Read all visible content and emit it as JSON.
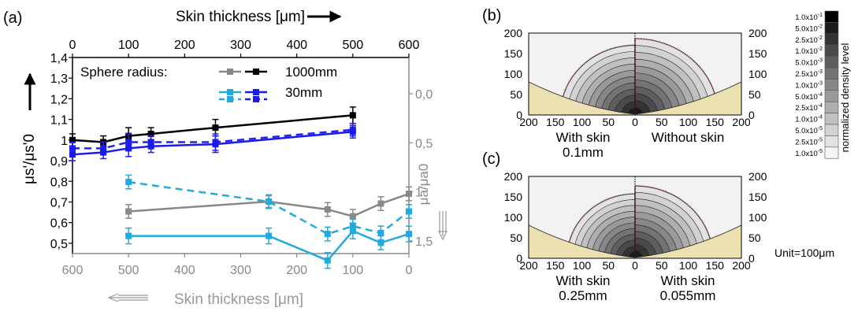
{
  "chart_data": [
    {
      "panel_label": "(a)",
      "type": "line",
      "top_axis": {
        "label": "Skin thickness [μm]",
        "ticks": [
          0,
          100,
          200,
          300,
          400,
          500,
          600
        ],
        "range": [
          0,
          600
        ]
      },
      "bottom_axis": {
        "label": "Skin thickness [μm]",
        "ticks": [
          600,
          500,
          400,
          300,
          200,
          100,
          0
        ],
        "range": [
          600,
          0
        ]
      },
      "left_axis": {
        "label": "μs'/μs'0",
        "ticks": [
          "1,4",
          "1,3",
          "1,2",
          "1,1",
          "1",
          "0,9",
          "0,8",
          "0,7",
          "0,6",
          "0,5"
        ],
        "range": [
          0.45,
          1.4
        ]
      },
      "right_axis": {
        "label": "μa/μa0",
        "ticks": [
          "0,0",
          "0,5",
          "1",
          "1,5"
        ],
        "range": [
          -0.37,
          1.63
        ]
      },
      "legend": {
        "title": "Sphere radius:",
        "entries": [
          "1000mm",
          "30mm"
        ]
      },
      "series": [
        {
          "name": "1000mm",
          "quantity": "μs'/μs'0",
          "color": "#000000",
          "dash": "solid",
          "x": [
            0,
            55,
            100,
            140,
            255,
            500
          ],
          "y": [
            1.0,
            0.99,
            1.02,
            1.03,
            1.06,
            1.12
          ],
          "err": [
            0.03,
            0.03,
            0.04,
            0.03,
            0.04,
            0.04
          ]
        },
        {
          "name": "30mm",
          "quantity": "μs'/μs'0",
          "color": "#2222ee",
          "dash": "dashed",
          "x": [
            0,
            55,
            100,
            140,
            255,
            500
          ],
          "y": [
            0.96,
            0.96,
            0.99,
            0.99,
            0.99,
            1.05
          ],
          "err": [
            0.03,
            0.03,
            0.04,
            0.03,
            0.04,
            0.03
          ]
        },
        {
          "name": "30mm",
          "quantity": "μs'/μs'0",
          "color": "#1a1aee",
          "dash": "solid",
          "x": [
            0,
            55,
            100,
            140,
            255,
            500
          ],
          "y": [
            0.93,
            0.94,
            0.96,
            0.97,
            0.98,
            1.04
          ],
          "err": [
            0.03,
            0.03,
            0.04,
            0.03,
            0.04,
            0.03
          ]
        },
        {
          "name": "1000mm",
          "quantity": "μa/μa0",
          "color": "#888888",
          "dash": "solid",
          "x": [
            500,
            250,
            145,
            100,
            50,
            0
          ],
          "y": [
            1.2,
            1.1,
            1.18,
            1.25,
            1.12,
            1.02
          ],
          "err": [
            0.07,
            0.06,
            0.07,
            0.07,
            0.07,
            0.07
          ]
        },
        {
          "name": "30mm",
          "quantity": "μa/μa0",
          "color": "#22aadd",
          "dash": "dashed",
          "x": [
            500,
            250,
            145,
            100,
            50,
            0
          ],
          "y": [
            0.9,
            1.1,
            1.43,
            1.35,
            1.42,
            1.2
          ],
          "err": [
            0.07,
            0.07,
            0.07,
            0.07,
            0.07,
            0.07
          ]
        },
        {
          "name": "30mm",
          "quantity": "μa/μa0",
          "color": "#22aadd",
          "dash": "solid",
          "x": [
            500,
            250,
            145,
            100,
            50,
            0
          ],
          "y": [
            1.45,
            1.45,
            1.7,
            1.4,
            1.52,
            1.43
          ],
          "err": [
            0.08,
            0.08,
            0.08,
            0.08,
            0.07,
            0.08
          ]
        }
      ]
    },
    {
      "panel_label": "(b)",
      "type": "heatmap",
      "x_ticks": [
        200,
        150,
        100,
        50,
        0,
        50,
        100,
        150,
        200
      ],
      "y_ticks": [
        0,
        50,
        100,
        150,
        200
      ],
      "left_caption": [
        "With skin",
        "0.1mm"
      ],
      "right_caption": [
        "Without skin"
      ]
    },
    {
      "panel_label": "(c)",
      "type": "heatmap",
      "x_ticks": [
        200,
        150,
        100,
        50,
        0,
        50,
        100,
        150,
        200
      ],
      "y_ticks": [
        0,
        50,
        100,
        150,
        200
      ],
      "left_caption": [
        "With skin",
        "0.25mm"
      ],
      "right_caption": [
        "With skin",
        "0.055mm"
      ]
    }
  ],
  "colorbar": {
    "label": "normalized density level",
    "levels": [
      {
        "text": "1.0x10-1",
        "color": "#000000"
      },
      {
        "text": "5.0x10-2",
        "color": "#1a1a1a"
      },
      {
        "text": "2.5x10-2",
        "color": "#333333"
      },
      {
        "text": "1.0x10-2",
        "color": "#4a4a4a"
      },
      {
        "text": "5.0x10-3",
        "color": "#5e5e5e"
      },
      {
        "text": "2.5x10-3",
        "color": "#737373"
      },
      {
        "text": "1.0x10-3",
        "color": "#878787"
      },
      {
        "text": "5.0x10-4",
        "color": "#9a9a9a"
      },
      {
        "text": "2.5x10-4",
        "color": "#aeaeae"
      },
      {
        "text": "1.0x10-4",
        "color": "#c0c0c0"
      },
      {
        "text": "5.0x10-5",
        "color": "#d2d2d2"
      },
      {
        "text": "2.5x10-5",
        "color": "#e2e2e2"
      },
      {
        "text": "1.0x10-5",
        "color": "#f4f4f4"
      }
    ]
  },
  "unit_note": "Unit=100μm",
  "colors": {
    "skin": "#ecdfb0"
  }
}
